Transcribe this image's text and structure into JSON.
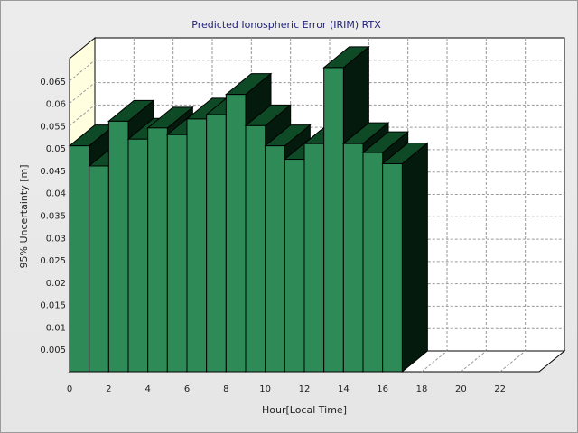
{
  "chart_data": {
    "type": "bar",
    "title": "Predicted Ionospheric Error (IRIM) RTX",
    "xlabel": "Hour[Local Time]",
    "ylabel": "95% Uncertainty [m]",
    "x_ticks": [
      "0",
      "2",
      "4",
      "6",
      "8",
      "10",
      "12",
      "14",
      "16",
      "18",
      "20",
      "22"
    ],
    "x_range": [
      0,
      24
    ],
    "y_ticks": [
      "0.005",
      "0.01",
      "0.015",
      "0.02",
      "0.025",
      "0.03",
      "0.035",
      "0.04",
      "0.045",
      "0.05",
      "0.055",
      "0.06",
      "0.065"
    ],
    "ylim": [
      0,
      0.07
    ],
    "grid": true,
    "hours": [
      0,
      1,
      2,
      3,
      4,
      5,
      6,
      7,
      8,
      9,
      10,
      11,
      12,
      13,
      14,
      15,
      16,
      17
    ],
    "values": [
      0.0505,
      0.046,
      0.056,
      0.052,
      0.0545,
      0.053,
      0.0565,
      0.0575,
      0.062,
      0.055,
      0.0505,
      0.0475,
      0.051,
      0.068,
      0.051,
      0.049,
      0.0465,
      null
    ],
    "colors": {
      "bar_front": "#2e8b57",
      "bar_top": "#0e4a25",
      "bar_side": "#041a0c",
      "back_wall": "#ffffff",
      "left_wall": "#ffffe0",
      "grid": "#9a9a9a",
      "title": "#1f1f7a",
      "text": "#222222"
    }
  }
}
